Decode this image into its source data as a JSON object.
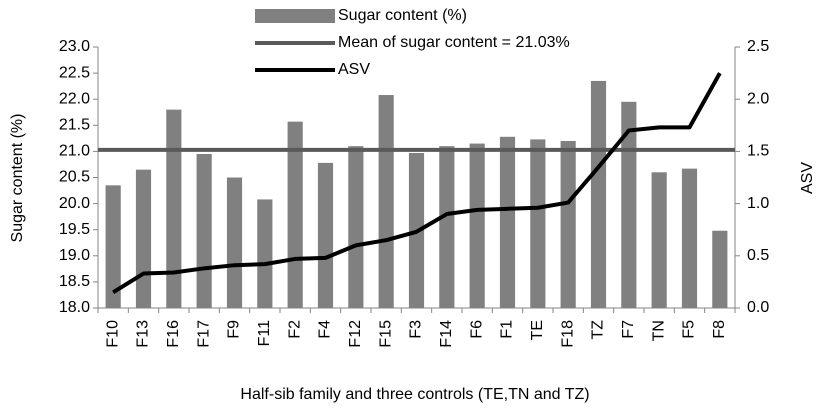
{
  "chart_data": {
    "type": "bar",
    "x_label": "Half-sib family and three controls (TE,TN and TZ)",
    "y_label": "Sugar content (%)",
    "y2_label": "ASV",
    "categories": [
      "F10",
      "F13",
      "F16",
      "F17",
      "F9",
      "F11",
      "F2",
      "F4",
      "F12",
      "F15",
      "F3",
      "F14",
      "F6",
      "F1",
      "TE",
      "F18",
      "TZ",
      "F7",
      "TN",
      "F5",
      "F8"
    ],
    "series": [
      {
        "name": "Sugar content (%)",
        "type": "bar",
        "color": "#808080",
        "values": [
          20.35,
          20.65,
          21.8,
          20.95,
          20.5,
          20.08,
          21.57,
          20.78,
          21.1,
          22.08,
          20.97,
          21.1,
          21.15,
          21.28,
          21.23,
          21.2,
          22.35,
          21.95,
          20.6,
          20.67,
          19.48
        ]
      },
      {
        "name": "ASV",
        "type": "line",
        "axis": "y2",
        "color": "#000000",
        "values": [
          0.15,
          0.33,
          0.34,
          0.38,
          0.41,
          0.42,
          0.47,
          0.48,
          0.6,
          0.65,
          0.73,
          0.9,
          0.94,
          0.95,
          0.96,
          1.01,
          1.35,
          1.7,
          1.73,
          1.73,
          2.25
        ]
      }
    ],
    "mean_line": {
      "name": "Mean of sugar content = 21.03%",
      "value": 21.03,
      "color": "#595959"
    },
    "ylim": [
      18,
      23
    ],
    "yticks": [
      {
        "value": 18,
        "label": "18.0"
      },
      {
        "value": 18.5,
        "label": "18.5"
      },
      {
        "value": 19,
        "label": "19.0"
      },
      {
        "value": 19.5,
        "label": "19.5"
      },
      {
        "value": 20,
        "label": "20.0"
      },
      {
        "value": 20.5,
        "label": "20.5"
      },
      {
        "value": 21,
        "label": "21.0"
      },
      {
        "value": 21.5,
        "label": "21.5"
      },
      {
        "value": 22,
        "label": "22.0"
      },
      {
        "value": 22.5,
        "label": "22.5"
      },
      {
        "value": 23,
        "label": "23.0"
      }
    ],
    "y2lim": [
      0,
      2.5
    ],
    "y2ticks": [
      {
        "value": 0,
        "label": "0.0"
      },
      {
        "value": 0.5,
        "label": "0.5"
      },
      {
        "value": 1,
        "label": "1.0"
      },
      {
        "value": 1.5,
        "label": "1.5"
      },
      {
        "value": 2,
        "label": "2.0"
      },
      {
        "value": 2.5,
        "label": "2.5"
      }
    ],
    "grid": false,
    "legend": "top"
  }
}
